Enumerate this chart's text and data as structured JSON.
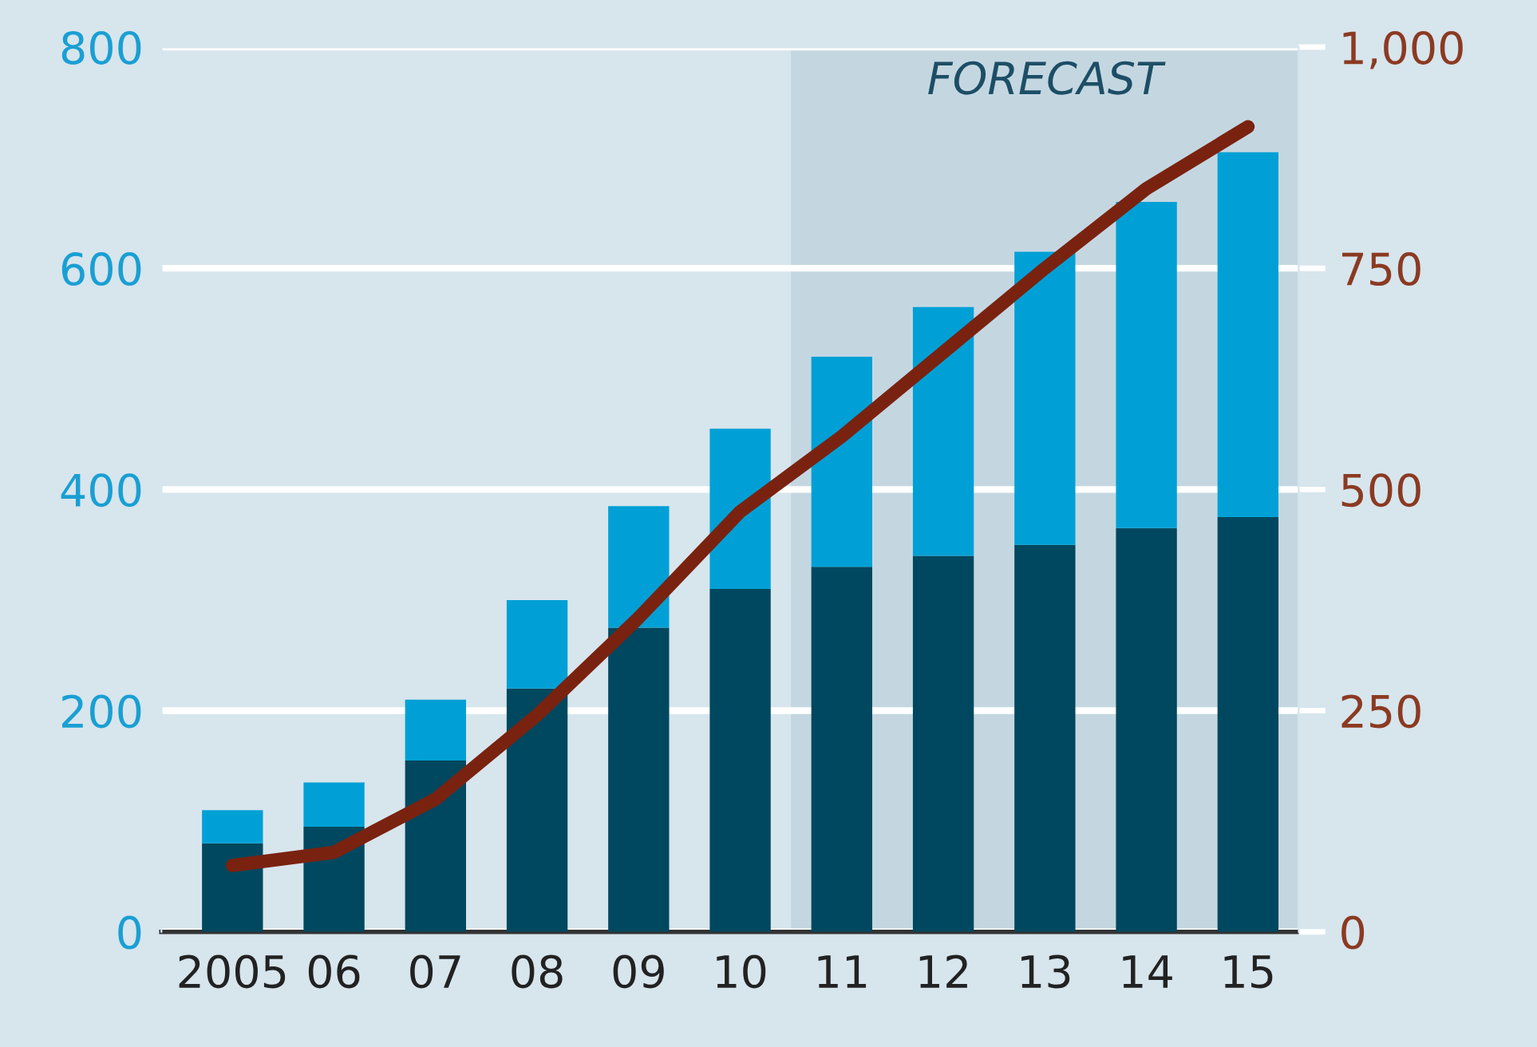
{
  "chart_data": {
    "type": "bar",
    "stacked": true,
    "categories": [
      "2005",
      "06",
      "07",
      "08",
      "09",
      "10",
      "11",
      "12",
      "13",
      "14",
      "15"
    ],
    "series": [
      {
        "color": "#00485f",
        "values": [
          80,
          95,
          155,
          220,
          275,
          310,
          330,
          340,
          350,
          365,
          375
        ]
      },
      {
        "color": "#00a0d6",
        "values": [
          30,
          40,
          55,
          80,
          110,
          145,
          190,
          225,
          265,
          295,
          330
        ]
      },
      {
        "type": "line",
        "axis": "y2",
        "color": "#7a2210",
        "values": [
          75,
          90,
          150,
          245,
          355,
          475,
          560,
          655,
          750,
          840,
          910
        ]
      }
    ],
    "ylim": [
      0,
      800
    ],
    "yticks": [
      0,
      200,
      400,
      600,
      800
    ],
    "y2lim": [
      0,
      1000
    ],
    "y2ticks": [
      0,
      250,
      500,
      750,
      {
        "value": 1000,
        "label": "1,000"
      }
    ],
    "bands": [
      {
        "axis": "x",
        "from": "11",
        "to": "15",
        "label": "FORECAST",
        "color": "#c4d7e1"
      }
    ],
    "grid": "y",
    "legend": false,
    "marker": "none",
    "line_style": "solid"
  }
}
